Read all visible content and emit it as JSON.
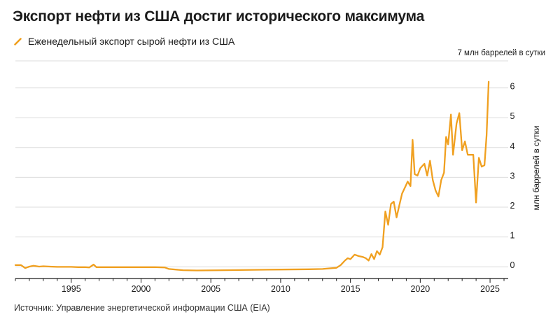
{
  "title": "Экспорт нефти из США достиг исторического максимума",
  "source": "Источник: Управление энергетической информации США (EIA)",
  "colors": {
    "series": "#f0a020",
    "grid": "#dcdcdc",
    "axis": "#1a1a1a",
    "text": "#1a1a1a"
  },
  "chart_data": {
    "type": "line",
    "title": "Экспорт нефти из США достиг исторического максимума",
    "ylabel": "млн баррелей в сутки",
    "top_annotation": "7 млн баррелей в сутки",
    "xlim": [
      1991,
      2026.3
    ],
    "ylim": [
      -0.3,
      7
    ],
    "x_ticks": [
      1995,
      2000,
      2005,
      2010,
      2015,
      2020,
      2025
    ],
    "x_tick_labels": [
      "1995",
      "2000",
      "2005",
      "2010",
      "2015",
      "2020",
      "2025"
    ],
    "y_ticks": [
      0,
      1,
      2,
      3,
      4,
      5,
      6
    ],
    "y_tick_labels": [
      "0",
      "1",
      "2",
      "3",
      "4",
      "5",
      "6"
    ],
    "y_axis_side": "right",
    "grid": true,
    "legend_position": "top-left",
    "series": [
      {
        "name": "Еженедельный экспорт сырой нефти из США",
        "points": [
          [
            1991.0,
            0.15
          ],
          [
            1991.4,
            0.15
          ],
          [
            1991.7,
            0.05
          ],
          [
            1992.0,
            0.1
          ],
          [
            1992.3,
            0.13
          ],
          [
            1992.7,
            0.1
          ],
          [
            1993.0,
            0.11
          ],
          [
            1993.5,
            0.1
          ],
          [
            1994.0,
            0.09
          ],
          [
            1994.5,
            0.09
          ],
          [
            1995.0,
            0.09
          ],
          [
            1995.5,
            0.08
          ],
          [
            1996.0,
            0.08
          ],
          [
            1996.3,
            0.07
          ],
          [
            1996.6,
            0.17
          ],
          [
            1996.8,
            0.08
          ],
          [
            1997.5,
            0.08
          ],
          [
            1998.0,
            0.08
          ],
          [
            1999.0,
            0.08
          ],
          [
            2000.0,
            0.08
          ],
          [
            2001.0,
            0.08
          ],
          [
            2001.7,
            0.07
          ],
          [
            2002.0,
            0.02
          ],
          [
            2003.0,
            -0.02
          ],
          [
            2004.0,
            -0.03
          ],
          [
            2006.0,
            -0.02
          ],
          [
            2008.0,
            -0.01
          ],
          [
            2010.0,
            0.0
          ],
          [
            2012.0,
            0.01
          ],
          [
            2013.0,
            0.02
          ],
          [
            2014.0,
            0.06
          ],
          [
            2014.3,
            0.15
          ],
          [
            2014.6,
            0.3
          ],
          [
            2014.8,
            0.38
          ],
          [
            2015.0,
            0.35
          ],
          [
            2015.3,
            0.5
          ],
          [
            2015.6,
            0.45
          ],
          [
            2015.9,
            0.42
          ],
          [
            2016.1,
            0.38
          ],
          [
            2016.3,
            0.3
          ],
          [
            2016.5,
            0.52
          ],
          [
            2016.7,
            0.35
          ],
          [
            2016.9,
            0.62
          ],
          [
            2017.1,
            0.5
          ],
          [
            2017.3,
            0.75
          ],
          [
            2017.5,
            1.95
          ],
          [
            2017.7,
            1.5
          ],
          [
            2017.9,
            2.2
          ],
          [
            2018.1,
            2.28
          ],
          [
            2018.3,
            1.75
          ],
          [
            2018.5,
            2.15
          ],
          [
            2018.7,
            2.55
          ],
          [
            2018.9,
            2.75
          ],
          [
            2019.1,
            2.95
          ],
          [
            2019.3,
            2.8
          ],
          [
            2019.45,
            4.35
          ],
          [
            2019.6,
            3.2
          ],
          [
            2019.8,
            3.15
          ],
          [
            2020.0,
            3.4
          ],
          [
            2020.3,
            3.55
          ],
          [
            2020.5,
            3.15
          ],
          [
            2020.7,
            3.65
          ],
          [
            2020.9,
            3.0
          ],
          [
            2021.1,
            2.65
          ],
          [
            2021.3,
            2.45
          ],
          [
            2021.5,
            3.0
          ],
          [
            2021.7,
            3.25
          ],
          [
            2021.85,
            4.45
          ],
          [
            2022.0,
            4.2
          ],
          [
            2022.2,
            5.2
          ],
          [
            2022.35,
            3.85
          ],
          [
            2022.6,
            4.9
          ],
          [
            2022.8,
            5.25
          ],
          [
            2023.0,
            4.0
          ],
          [
            2023.2,
            4.3
          ],
          [
            2023.4,
            3.85
          ],
          [
            2023.6,
            3.85
          ],
          [
            2023.8,
            3.85
          ],
          [
            2024.0,
            2.25
          ],
          [
            2024.2,
            3.75
          ],
          [
            2024.4,
            3.45
          ],
          [
            2024.6,
            3.5
          ],
          [
            2024.75,
            4.5
          ],
          [
            2024.9,
            6.3
          ]
        ]
      }
    ]
  }
}
